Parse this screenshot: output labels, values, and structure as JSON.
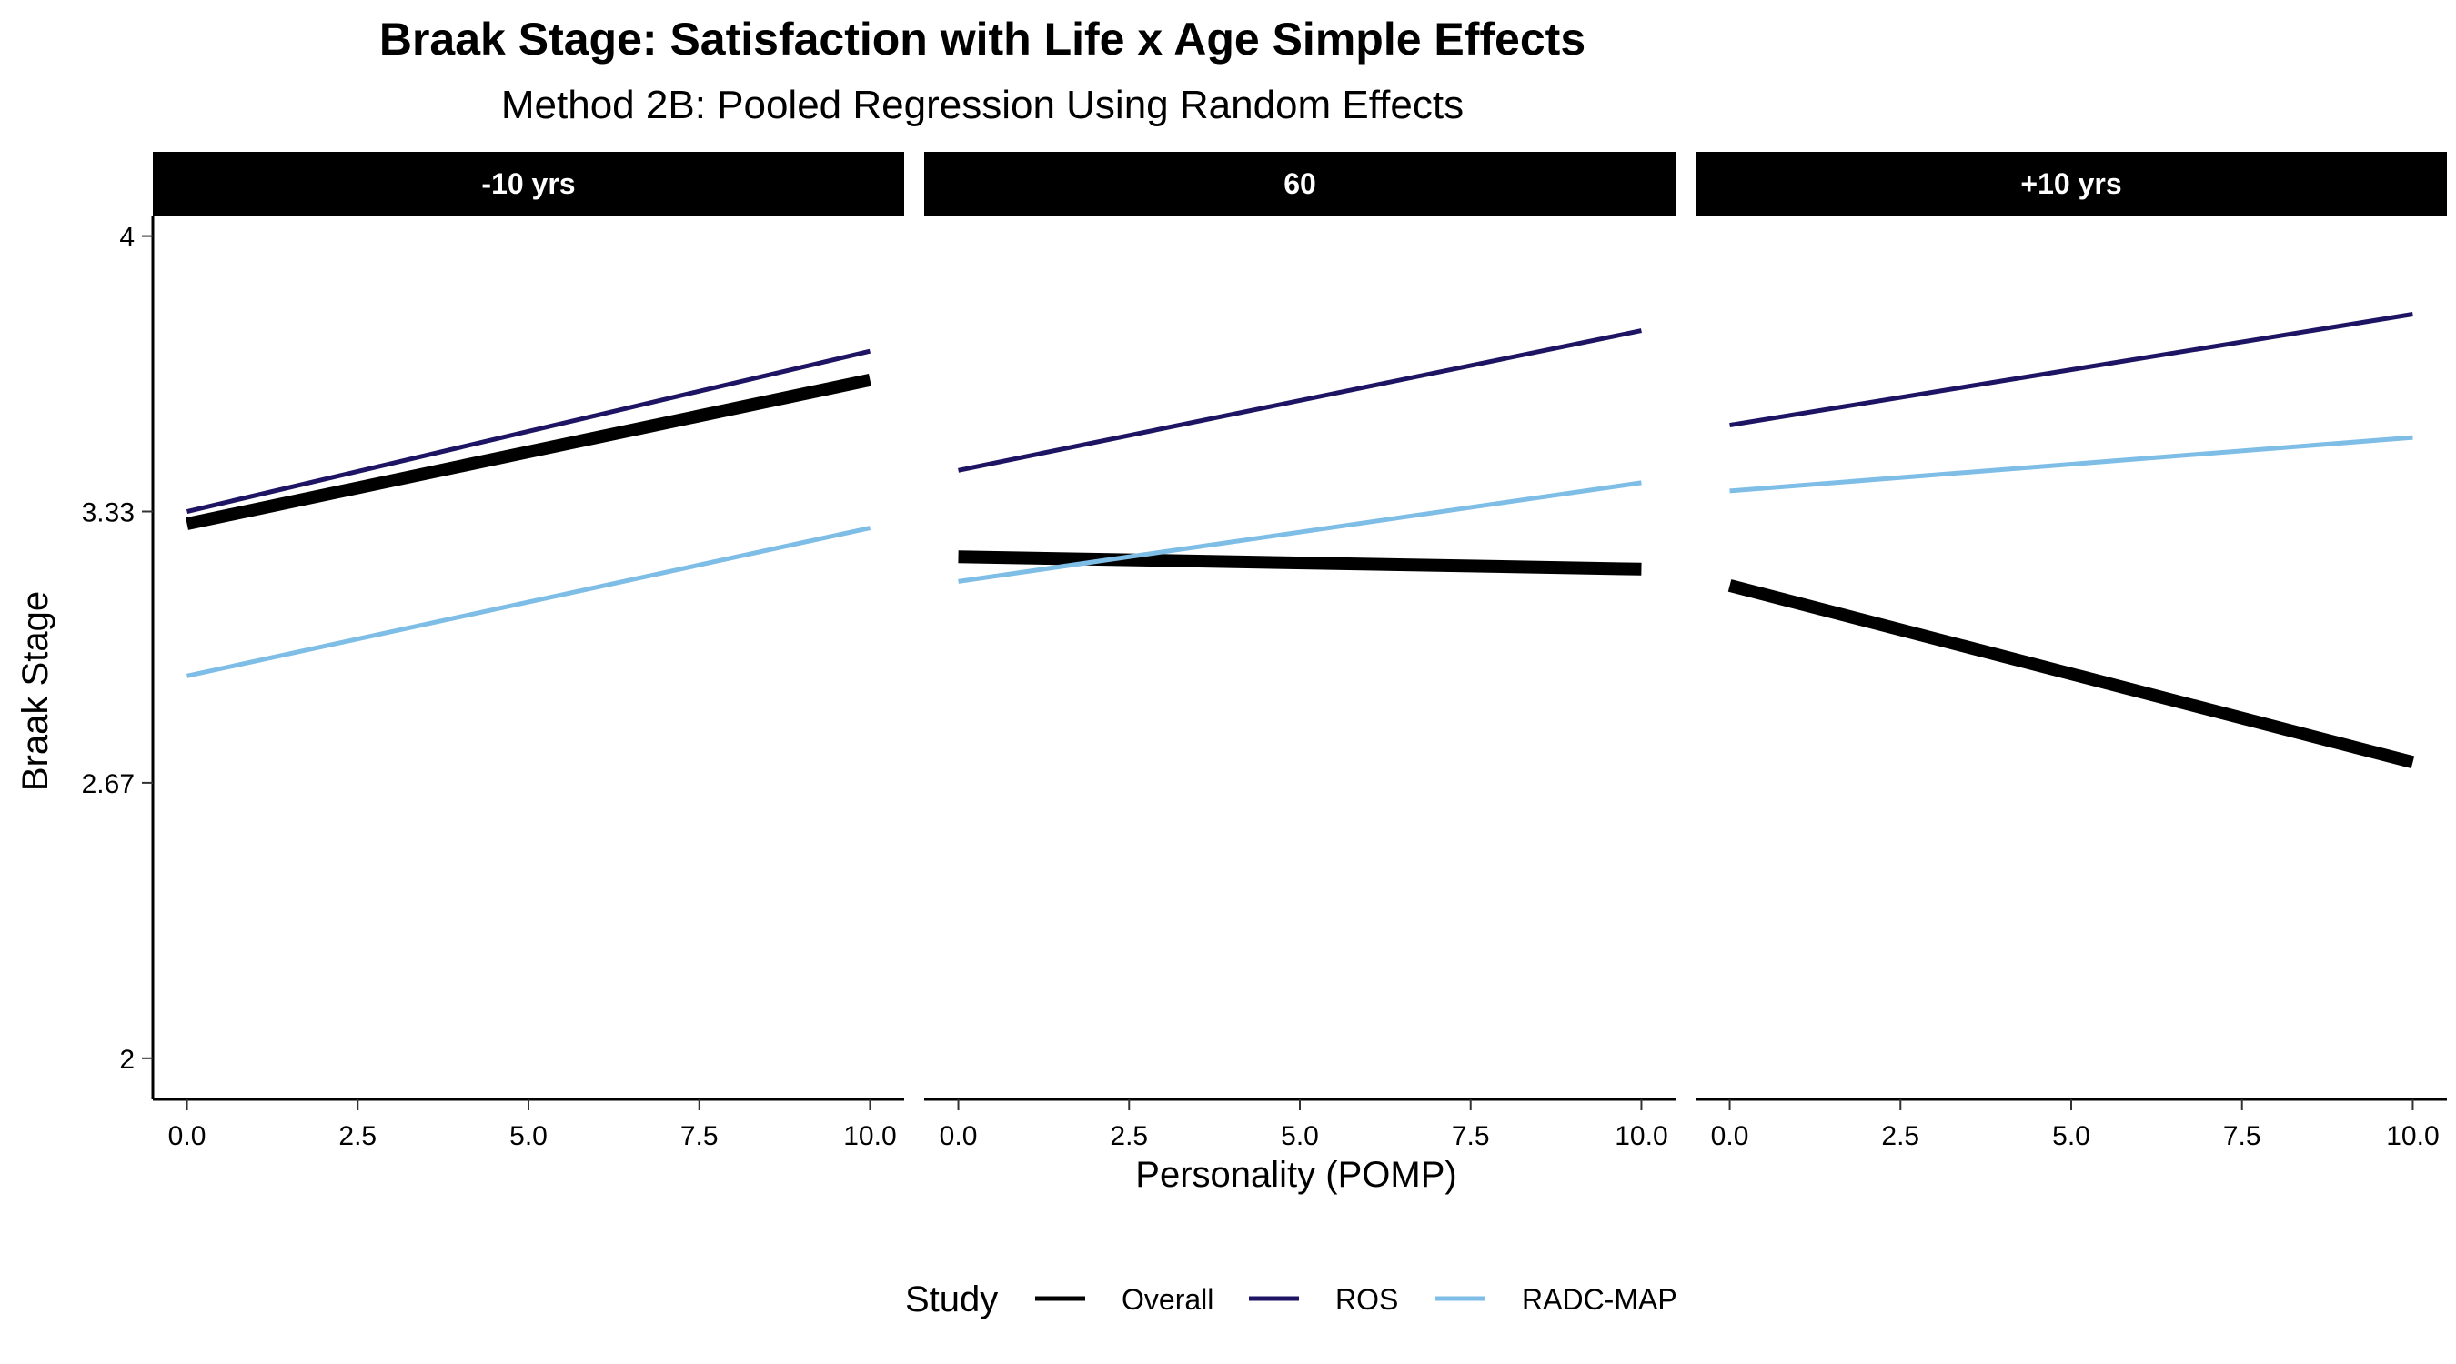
{
  "chart_data": {
    "type": "line",
    "title": "Braak Stage: Satisfaction with Life x Age Simple Effects",
    "subtitle": "Method 2B: Pooled Regression Using Random Effects",
    "xlabel": "Personality (POMP)",
    "ylabel": "Braak Stage",
    "x_ticks": [
      "0.0",
      "2.5",
      "5.0",
      "7.5",
      "10.0"
    ],
    "y_ticks": [
      "2",
      "2.67",
      "3.33",
      "4"
    ],
    "xlim": [
      -0.5,
      10.5
    ],
    "ylim": [
      1.9,
      4.05
    ],
    "grid": false,
    "legend": {
      "title": "Study",
      "position": "bottom",
      "entries": [
        "Overall",
        "ROS",
        "RADC-MAP"
      ]
    },
    "colors": {
      "Overall": "#000000",
      "ROS": "#1e1464",
      "RADC-MAP": "#7dbde6",
      "strip_background": "#000000",
      "strip_text": "#ffffff"
    },
    "panels": [
      {
        "label": "-10 yrs",
        "series": [
          {
            "name": "Overall",
            "x": [
              0,
              10
            ],
            "y": [
              3.3,
              3.65
            ]
          },
          {
            "name": "ROS",
            "x": [
              0,
              10
            ],
            "y": [
              3.33,
              3.72
            ]
          },
          {
            "name": "RADC-MAP",
            "x": [
              0,
              10
            ],
            "y": [
              2.93,
              3.29
            ]
          }
        ]
      },
      {
        "label": "60",
        "series": [
          {
            "name": "Overall",
            "x": [
              0,
              10
            ],
            "y": [
              3.22,
              3.19
            ]
          },
          {
            "name": "ROS",
            "x": [
              0,
              10
            ],
            "y": [
              3.43,
              3.77
            ]
          },
          {
            "name": "RADC-MAP",
            "x": [
              0,
              10
            ],
            "y": [
              3.16,
              3.4
            ]
          }
        ]
      },
      {
        "label": "+10 yrs",
        "series": [
          {
            "name": "Overall",
            "x": [
              0,
              10
            ],
            "y": [
              3.15,
              2.72
            ]
          },
          {
            "name": "ROS",
            "x": [
              0,
              10
            ],
            "y": [
              3.54,
              3.81
            ]
          },
          {
            "name": "RADC-MAP",
            "x": [
              0,
              10
            ],
            "y": [
              3.38,
              3.51
            ]
          }
        ]
      }
    ]
  }
}
